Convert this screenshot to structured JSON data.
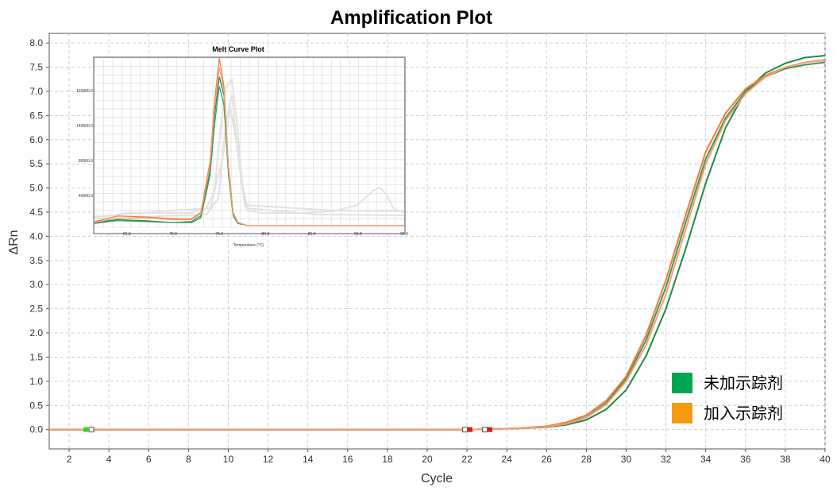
{
  "main_chart": {
    "title": "Amplification Plot",
    "xlabel": "Cycle",
    "ylabel": "ΔRn",
    "x_ticks": [
      2,
      4,
      6,
      8,
      10,
      12,
      14,
      16,
      18,
      20,
      22,
      24,
      26,
      28,
      30,
      32,
      34,
      36,
      38,
      40
    ],
    "y_ticks": [
      "0.0",
      "0.5",
      "1.0",
      "1.5",
      "2.0",
      "2.5",
      "3.0",
      "3.5",
      "4.0",
      "4.5",
      "5.0",
      "5.5",
      "6.0",
      "6.5",
      "7.0",
      "7.5",
      "8.0"
    ]
  },
  "chart_data": [
    {
      "type": "line",
      "title": "Amplification Plot",
      "xlabel": "Cycle",
      "ylabel": "ΔRn",
      "xlim": [
        1,
        40
      ],
      "ylim": [
        -0.4,
        8.2
      ],
      "grid": true,
      "legend_position": "bottom-right",
      "x": [
        1,
        2,
        3,
        4,
        5,
        6,
        7,
        8,
        9,
        10,
        11,
        12,
        13,
        14,
        15,
        16,
        17,
        18,
        19,
        20,
        21,
        22,
        23,
        24,
        25,
        26,
        27,
        28,
        29,
        30,
        31,
        32,
        33,
        34,
        35,
        36,
        37,
        38,
        39,
        40
      ],
      "series": [
        {
          "name": "未加示踪剂",
          "color": "#1e8a4c",
          "values": [
            0,
            0,
            0,
            0,
            0,
            0,
            0,
            0,
            0,
            0,
            0,
            0,
            0,
            0,
            0,
            0,
            0,
            0,
            0,
            0,
            0,
            0,
            0.01,
            0.02,
            0.03,
            0.05,
            0.1,
            0.2,
            0.42,
            0.82,
            1.52,
            2.5,
            3.75,
            5.1,
            6.25,
            7.0,
            7.38,
            7.58,
            7.7,
            7.74
          ]
        },
        {
          "name": "未加示踪剂",
          "color": "#3a9a5a",
          "values": [
            0,
            0,
            0,
            0,
            0,
            0,
            0,
            0,
            0,
            0,
            0,
            0,
            0,
            0,
            0,
            0,
            0,
            0,
            0,
            0,
            0,
            0,
            0.01,
            0.02,
            0.03,
            0.06,
            0.13,
            0.26,
            0.55,
            1.05,
            1.85,
            2.95,
            4.3,
            5.6,
            6.45,
            7.0,
            7.3,
            7.47,
            7.55,
            7.6
          ]
        },
        {
          "name": "加入示踪剂",
          "color": "#f07a3c",
          "values": [
            0,
            0,
            0,
            0,
            0,
            0,
            0,
            0,
            0,
            0,
            0,
            0,
            0,
            0,
            0,
            0,
            0,
            0,
            0,
            0,
            0,
            0,
            0.01,
            0.02,
            0.04,
            0.07,
            0.15,
            0.3,
            0.6,
            1.1,
            1.95,
            3.1,
            4.45,
            5.75,
            6.55,
            7.05,
            7.33,
            7.5,
            7.6,
            7.65
          ]
        },
        {
          "name": "加入示踪剂",
          "color": "#f7a070",
          "values": [
            0,
            0,
            0,
            0,
            0,
            0,
            0,
            0,
            0,
            0,
            0,
            0,
            0,
            0,
            0,
            0,
            0,
            0,
            0,
            0,
            0,
            0,
            0.01,
            0.02,
            0.03,
            0.06,
            0.12,
            0.25,
            0.52,
            1.0,
            1.75,
            2.8,
            4.15,
            5.5,
            6.4,
            6.95,
            7.3,
            7.5,
            7.6,
            7.64
          ]
        }
      ]
    },
    {
      "type": "line",
      "title": "Melt Curve Plot",
      "xlabel": "Temperature (°C)",
      "x_ticks": [
        "65.0",
        "70.0",
        "75.0",
        "80.0",
        "85.0",
        "90.0",
        "95.0"
      ],
      "y_ticks": [
        "40000.0",
        "80000.0",
        "140000.0",
        "160000.0"
      ],
      "xlim": [
        61.5,
        95.0
      ],
      "ylim": [
        0,
        180000
      ],
      "grid": true,
      "x": [
        61.5,
        64,
        67,
        70,
        72,
        73,
        74,
        74.5,
        75,
        75.5,
        76,
        76.5,
        77,
        78,
        80,
        85,
        90,
        95
      ],
      "series": [
        {
          "color": "#1e8a4c",
          "values": [
            5000,
            8000,
            7000,
            5000,
            6000,
            12000,
            60000,
            120000,
            160000,
            140000,
            60000,
            15000,
            5000,
            2000,
            2000,
            2000,
            2000,
            2000
          ]
        },
        {
          "color": "#3a9a5a",
          "values": [
            4000,
            7000,
            6000,
            5000,
            5000,
            10000,
            55000,
            110000,
            150000,
            130000,
            55000,
            12000,
            4000,
            2000,
            2000,
            2000,
            2000,
            2000
          ]
        },
        {
          "color": "#f07a3c",
          "values": [
            6000,
            12000,
            11000,
            9000,
            9000,
            16000,
            70000,
            135000,
            180000,
            150000,
            65000,
            16000,
            5000,
            2000,
            2000,
            2000,
            2000,
            2000
          ]
        },
        {
          "color": "#f7a070",
          "values": [
            5000,
            10000,
            10000,
            8000,
            8000,
            14000,
            65000,
            128000,
            170000,
            145000,
            62000,
            15000,
            5000,
            2000,
            2000,
            2000,
            2000,
            2000
          ]
        }
      ]
    }
  ],
  "legend": [
    {
      "label": "未加示踪剂",
      "color": "#00a651"
    },
    {
      "label": "加入示踪剂",
      "color": "#f39c12"
    }
  ],
  "markers": {
    "start_color": "#22dd22",
    "end_color": "#ee1111"
  },
  "inset": {
    "title": "Melt Curve Plot",
    "xlabel": "Temperature (°C)",
    "x_ticks": [
      "65.0",
      "70.0",
      "75.0",
      "80.0",
      "85.0",
      "90.0",
      "95.0"
    ],
    "y_ticks": [
      "40000.0",
      "80000.0",
      "140000.0",
      "160000.0"
    ]
  }
}
